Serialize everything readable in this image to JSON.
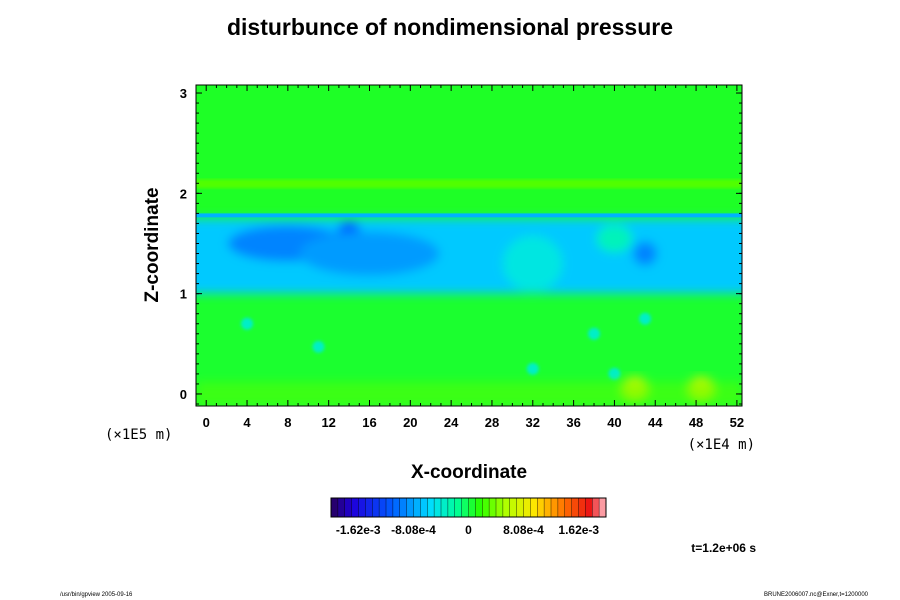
{
  "chart_data": {
    "type": "heatmap",
    "title": "disturbunce of nondimensional pressure",
    "xlabel": "X-coordinate",
    "ylabel": "Z-coordinate",
    "x_scale_label": "(×1E4 m)",
    "y_scale_label": "(×1E5 m)",
    "x_ticks": [
      "0",
      "4",
      "8",
      "12",
      "16",
      "20",
      "24",
      "28",
      "32",
      "36",
      "40",
      "44",
      "48",
      "52"
    ],
    "y_ticks": [
      "0",
      "1",
      "2",
      "3"
    ],
    "xlim": [
      -1,
      52.5
    ],
    "ylim": [
      -0.12,
      3.08
    ],
    "colorbar": {
      "range": [
        -0.00202,
        0.00202
      ],
      "tick_labels": [
        "-1.62e-3",
        "-8.08e-4",
        "0",
        "8.08e-4",
        "1.62e-3"
      ],
      "tick_values": [
        -0.00162,
        -0.000808,
        0,
        0.000808,
        0.00162
      ]
    },
    "field_features": {
      "upper_layer_value": 8e-05,
      "band_z": 2.1,
      "band_value": 0.00028,
      "thin_line_z": 1.78,
      "thin_line_value": -0.00075,
      "blue_layer_z": [
        1.0,
        1.75
      ],
      "blue_layer_value": -0.00065,
      "deep_blue_blobs": [
        {
          "x": 8,
          "z": 1.5,
          "value": -0.00095
        },
        {
          "x": 14,
          "z": 1.6,
          "value": -0.0011
        },
        {
          "x": 43,
          "z": 1.4,
          "value": -0.00095
        }
      ],
      "lower_layer_value": 6e-05,
      "yellow_blobs": [
        {
          "x": 42,
          "z": 0.05,
          "value": 0.00075
        },
        {
          "x": 48.5,
          "z": 0.05,
          "value": 0.00075
        }
      ]
    },
    "time_label": "t=1.2e+06 s"
  },
  "footer": {
    "left": "/usr/bin/gpview 2005-09-16",
    "right": "BRUNE2006007.nc@Exner,t=1200000"
  }
}
